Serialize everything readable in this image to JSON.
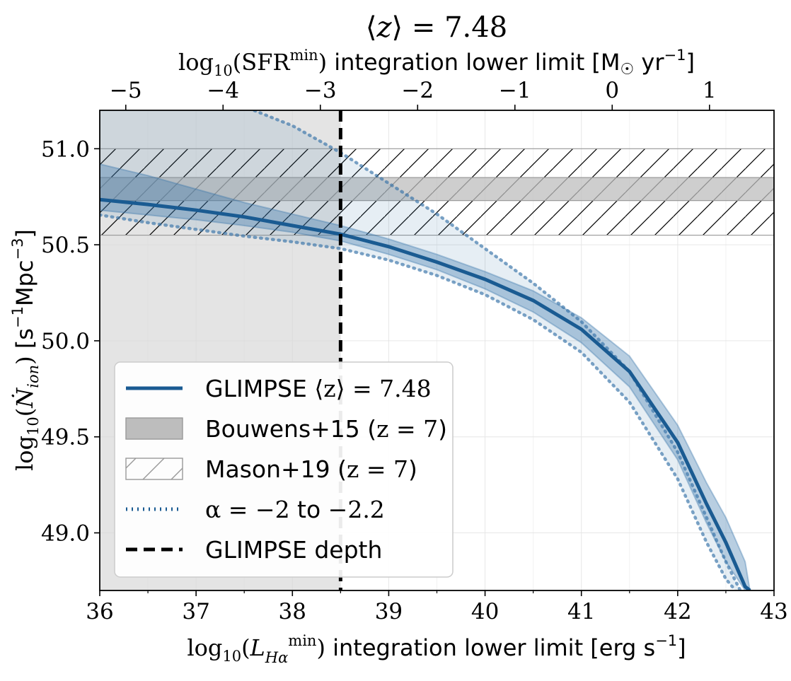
{
  "chart_data": {
    "type": "line",
    "title": "⟨z⟩ = 7.48",
    "xlabel": "log10(L_Hα^min) integration lower limit [erg s^-1]",
    "ylabel": "log10(Ṅ_ion) [s^-1 Mpc^-3]",
    "top_xlabel": "log10(SFR^min) integration lower limit [M☉ yr^-1]",
    "xlim": [
      36,
      43
    ],
    "ylim": [
      48.7,
      51.2
    ],
    "x_ticks": [
      "36",
      "37",
      "38",
      "39",
      "40",
      "41",
      "42",
      "43"
    ],
    "y_ticks": [
      "49.0",
      "49.5",
      "50.0",
      "50.5",
      "51.0"
    ],
    "top_ticks": [
      {
        "label": "−5",
        "L": 36.27
      },
      {
        "label": "−4",
        "L": 37.28
      },
      {
        "label": "−3",
        "L": 38.29
      },
      {
        "label": "−2",
        "L": 39.3
      },
      {
        "label": "−1",
        "L": 40.31
      },
      {
        "label": "0",
        "L": 41.32
      },
      {
        "label": "1",
        "L": 42.33
      }
    ],
    "grid": true,
    "shaded_region": {
      "x_from": 36,
      "x_to": 38.5
    },
    "glimpse_depth": 38.5,
    "bouwens15": {
      "y_low": 50.73,
      "y_high": 50.85
    },
    "mason19": {
      "y_low": 50.55,
      "y_high": 51.0
    },
    "series": [
      {
        "name": "GLIMPSE ⟨z⟩ = 7.48",
        "x": [
          36.0,
          36.5,
          37.0,
          37.5,
          38.0,
          38.5,
          39.0,
          39.5,
          40.0,
          40.5,
          41.0,
          41.5,
          42.0,
          42.3,
          42.5,
          42.7,
          42.75
        ],
        "y": [
          50.735,
          50.71,
          50.68,
          50.645,
          50.6,
          50.555,
          50.49,
          50.41,
          50.32,
          50.21,
          50.06,
          49.84,
          49.47,
          49.15,
          48.95,
          48.72,
          48.7
        ],
        "band_low": [
          50.68,
          50.655,
          50.63,
          50.6,
          50.565,
          50.52,
          50.45,
          50.37,
          50.27,
          50.15,
          49.99,
          49.76,
          49.38,
          49.05,
          48.85,
          48.7,
          48.7
        ],
        "band_high": [
          50.92,
          50.86,
          50.79,
          50.72,
          50.66,
          50.6,
          50.53,
          50.45,
          50.36,
          50.26,
          50.12,
          49.92,
          49.56,
          49.26,
          49.08,
          48.85,
          48.7
        ]
      },
      {
        "name": "α = −2 to −2.2",
        "upper_x": [
          36.0,
          36.6,
          37.2,
          37.6,
          38.0,
          38.5,
          39.0,
          39.5,
          40.0,
          40.5,
          41.0,
          41.5,
          42.0,
          42.3,
          42.5,
          42.65
        ],
        "upper_y": [
          51.45,
          51.38,
          51.28,
          51.2,
          51.12,
          50.98,
          50.82,
          50.66,
          50.48,
          50.3,
          50.1,
          49.84,
          49.42,
          49.08,
          48.85,
          48.7
        ],
        "lower_x": [
          36.0,
          36.5,
          37.0,
          37.5,
          38.0,
          38.5,
          39.0,
          39.5,
          40.0,
          40.5,
          41.0,
          41.5,
          42.0,
          42.3,
          42.5,
          42.6
        ],
        "lower_y": [
          50.655,
          50.615,
          50.58,
          50.545,
          50.515,
          50.48,
          50.42,
          50.34,
          50.24,
          50.11,
          49.94,
          49.68,
          49.28,
          48.95,
          48.76,
          48.7
        ]
      }
    ],
    "legend": {
      "placement": "lower-left",
      "entries": [
        {
          "type": "line",
          "label_pre": "GLIMPSE ",
          "label_math": "⟨z⟩ = 7.48"
        },
        {
          "type": "filled",
          "label_pre": "Bouwens+15 (",
          "label_math": "z = 7",
          "label_post": ")"
        },
        {
          "type": "hatched",
          "label_pre": "Mason+19 (",
          "label_math": "z = 7",
          "label_post": ")"
        },
        {
          "type": "dotted",
          "label_pre": "",
          "label_math": "α = −2",
          "label_mid": " to ",
          "label_math2": "−2.2"
        },
        {
          "type": "dashed",
          "label_pre": "GLIMPSE depth"
        }
      ]
    },
    "colors": {
      "main": "#1a5b92",
      "band": "#3572a8",
      "dotted": "#3572a8",
      "shade": "#d9d9d9",
      "bouwens": "#bdbdbd"
    }
  }
}
